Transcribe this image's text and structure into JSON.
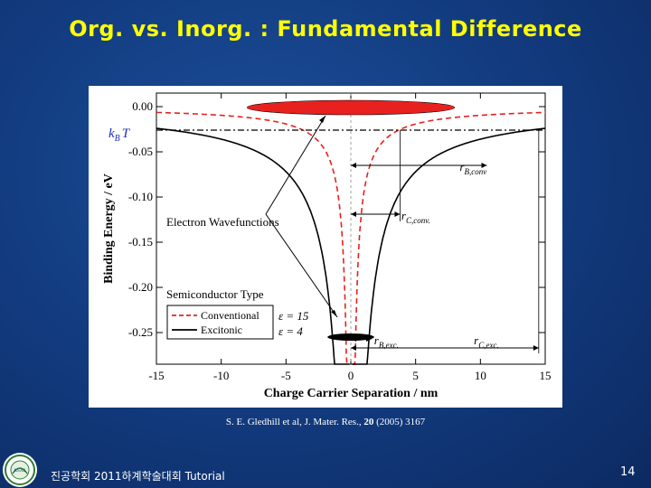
{
  "slide": {
    "title": "Org. vs. Inorg. : Fundamental Difference",
    "citation_prefix": "S. E. Gledhill et al, J. Mater. Res., ",
    "citation_volume": "20",
    "citation_suffix": " (2005) 3167",
    "footer_text": "진공학회 2011하계학술대회 Tutorial",
    "page_number": "14",
    "logo_text": "KSAE"
  },
  "chart_data": {
    "type": "line",
    "xlabel": "Charge Carrier Separation / nm",
    "ylabel": "Binding Energy / eV",
    "xlim": [
      -15,
      15
    ],
    "ylim": [
      -0.285,
      0.015
    ],
    "x_ticks": [
      -15,
      -10,
      -5,
      0,
      5,
      10,
      15
    ],
    "x_tick_labels": [
      "-15",
      "-10",
      "-5",
      "0",
      "5",
      "10",
      "15"
    ],
    "y_ticks": [
      0.0,
      -0.05,
      -0.1,
      -0.15,
      -0.2,
      -0.25
    ],
    "y_tick_labels": [
      "0.00",
      "-0.05",
      "-0.10",
      "-0.15",
      "-0.20",
      "-0.25"
    ],
    "kT_level": -0.026,
    "kT_label": {
      "k": "k",
      "sub": "B",
      "T": "T"
    },
    "series": [
      {
        "name": "Conventional",
        "epsilon_label": "ε = 15",
        "style": "dashed",
        "color": "#e8211e",
        "epsilon": 15
      },
      {
        "name": "Excitonic",
        "epsilon_label": "ε = 4",
        "style": "solid",
        "color": "#000000",
        "epsilon": 4
      }
    ],
    "legend_title": "Semiconductor Type",
    "legend_placement": "bottom-left",
    "annotations": {
      "wavefunctions": "Electron Wavefunctions",
      "rB_conv": {
        "r": "r",
        "sub": "B,conv"
      },
      "rC_conv": {
        "r": "r",
        "sub": "C,conv."
      },
      "rB_exc": {
        "r": "r",
        "sub": "B,exc."
      },
      "rC_exc": {
        "r": "r",
        "sub": "C,exc."
      }
    },
    "wavefunction_colors": {
      "conventional": "#e8211e",
      "excitonic": "#000000"
    },
    "grid": false
  }
}
